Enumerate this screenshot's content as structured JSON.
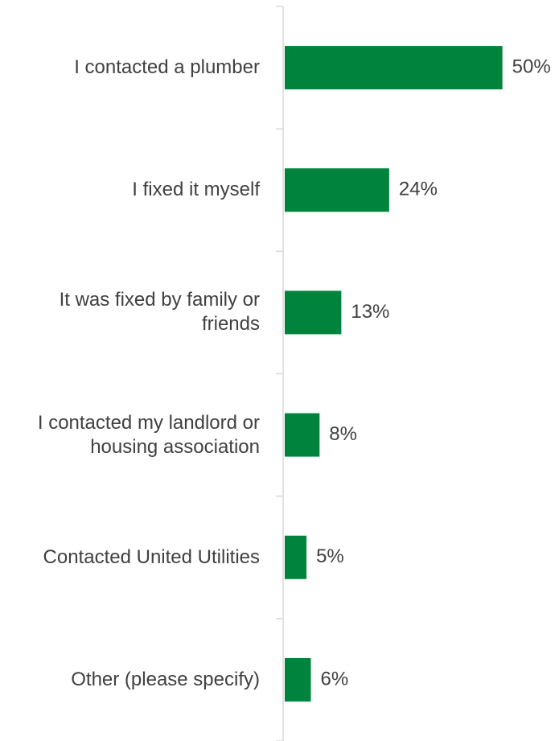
{
  "chart_data": {
    "type": "bar",
    "orientation": "horizontal",
    "categories": [
      "I contacted a plumber",
      "I fixed it myself",
      "It was fixed by family or friends",
      "I contacted my landlord or housing association",
      "Contacted United Utilities",
      "Other (please specify)"
    ],
    "values": [
      50,
      24,
      13,
      8,
      5,
      6
    ],
    "value_labels": [
      "50%",
      "24%",
      "13%",
      "8%",
      "5%",
      "6%"
    ],
    "color": "#00843d",
    "xlim": [
      0,
      63
    ]
  }
}
